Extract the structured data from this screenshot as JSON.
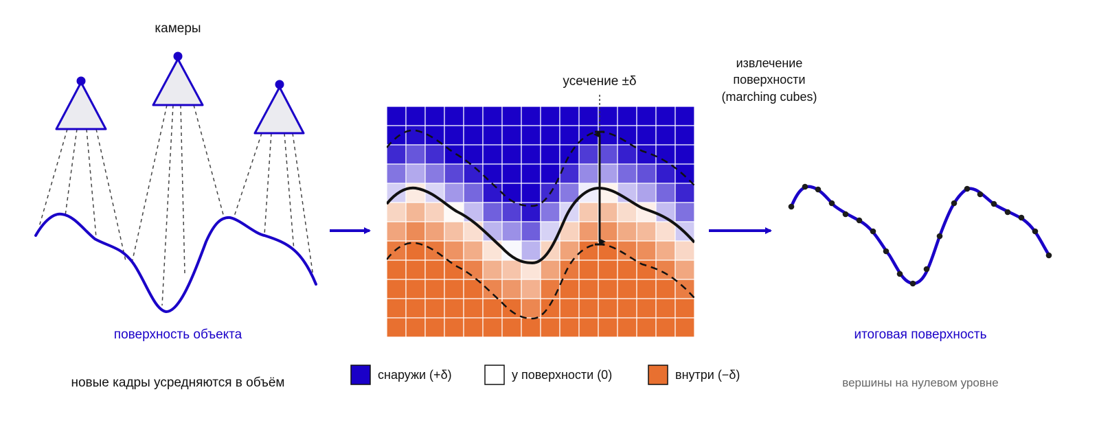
{
  "labels": {
    "cameras": "камеры",
    "object_surface": "поверхность объекта",
    "frames_note": "новые кадры усредняются в объём",
    "truncation": "усечение ±δ",
    "extraction_line1": "извлечение",
    "extraction_line2": "поверхности",
    "extraction_line3": "(marching cubes)",
    "final_surface": "итоговая поверхность",
    "vertices_note": "вершины на нулевом уровне"
  },
  "legend": [
    {
      "label": "снаружи (+δ)",
      "color": "#1a00c8"
    },
    {
      "label": "у поверхности (0)",
      "color": "#ffffff"
    },
    {
      "label": "внутри (−δ)",
      "color": "#e87030"
    }
  ],
  "colors": {
    "accent": "#1a00c8",
    "outside": "#1a00c8",
    "inside": "#e87030",
    "camera_fill": "#ebebf0",
    "caption": "#1a00c8",
    "muted": "#666666"
  },
  "grid": {
    "cols": 16,
    "rows": 12
  }
}
